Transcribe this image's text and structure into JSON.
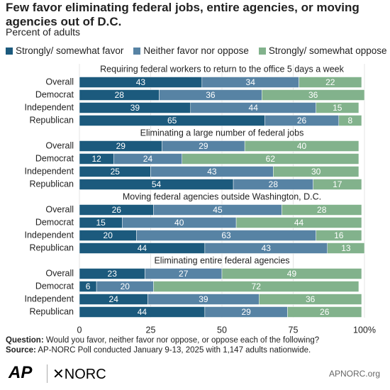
{
  "chart_data": {
    "type": "bar",
    "stacked": true,
    "orientation": "horizontal",
    "title": "Few favor eliminating federal jobs, entire agencies, or moving agencies out of D.C.",
    "subtitle": "Percent of adults",
    "series": [
      {
        "name": "Strongly/ somewhat favor",
        "color": "#1c5a7d"
      },
      {
        "name": "Neither favor nor oppose",
        "color": "#5783a4"
      },
      {
        "name": "Strongly/ somewhat oppose",
        "color": "#82b28c"
      }
    ],
    "groups": [
      {
        "title": "Requiring federal workers to return to the office 5 days a week",
        "categories": [
          "Overall",
          "Democrat",
          "Independent",
          "Republican"
        ],
        "values": [
          [
            43,
            34,
            22
          ],
          [
            28,
            36,
            36
          ],
          [
            39,
            44,
            15
          ],
          [
            65,
            26,
            8
          ]
        ]
      },
      {
        "title": "Eliminating a large number of federal jobs",
        "categories": [
          "Overall",
          "Democrat",
          "Independent",
          "Republican"
        ],
        "values": [
          [
            29,
            29,
            40
          ],
          [
            12,
            24,
            62
          ],
          [
            25,
            43,
            30
          ],
          [
            54,
            28,
            17
          ]
        ]
      },
      {
        "title": "Moving federal agencies outside Washington, D.C.",
        "categories": [
          "Overall",
          "Democrat",
          "Independent",
          "Republican"
        ],
        "values": [
          [
            26,
            45,
            28
          ],
          [
            15,
            40,
            44
          ],
          [
            20,
            63,
            16
          ],
          [
            44,
            43,
            13
          ]
        ]
      },
      {
        "title": "Eliminating entire federal agencies",
        "categories": [
          "Overall",
          "Democrat",
          "Independent",
          "Republican"
        ],
        "values": [
          [
            23,
            27,
            49
          ],
          [
            6,
            20,
            72
          ],
          [
            24,
            39,
            36
          ],
          [
            44,
            29,
            26
          ]
        ]
      }
    ],
    "xlim": [
      0,
      100
    ],
    "xticks": [
      0,
      25,
      50,
      75,
      {
        "value": 100,
        "label": "100%"
      }
    ],
    "grid": true
  },
  "footer": {
    "question_label": "Question:",
    "question": "Would you favor, neither favor nor oppose, or oppose each of the following?",
    "source_label": "Source:",
    "source": "AP-NORC Poll conducted January 9-13, 2025 with 1,147 adults nationwide.",
    "logo_ap": "AP",
    "logo_norc": "✕NORC",
    "website": "APNORC.org"
  }
}
